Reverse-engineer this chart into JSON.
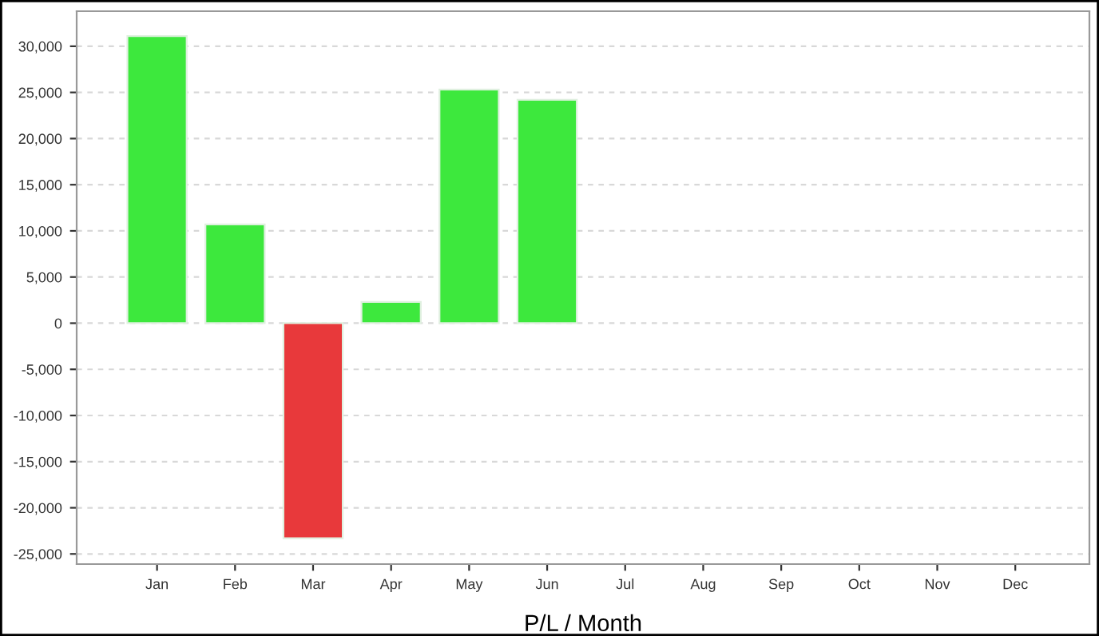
{
  "chart_data": {
    "type": "bar",
    "xlabel": "P/L / Month",
    "categories": [
      "Jan",
      "Feb",
      "Mar",
      "Apr",
      "May",
      "Jun",
      "Jul",
      "Aug",
      "Sep",
      "Oct",
      "Nov",
      "Dec"
    ],
    "values": [
      31100,
      10700,
      -23300,
      2300,
      25300,
      24200,
      null,
      null,
      null,
      null,
      null,
      null
    ],
    "colors": [
      "#3de83d",
      "#3de83d",
      "#e8393b",
      "#3de83d",
      "#3de83d",
      "#3de83d",
      "#3de83d",
      "#3de83d",
      "#3de83d",
      "#3de83d",
      "#3de83d",
      "#3de83d"
    ],
    "ylim": [
      -26100,
      33800
    ],
    "yticks": [
      {
        "value": -25000,
        "label": "-25,000"
      },
      {
        "value": -20000,
        "label": "-20,000"
      },
      {
        "value": -15000,
        "label": "-15,000"
      },
      {
        "value": -10000,
        "label": "-10,000"
      },
      {
        "value": -5000,
        "label": "-5,000"
      },
      0,
      {
        "value": 5000,
        "label": "5,000"
      },
      {
        "value": 10000,
        "label": "10,000"
      },
      {
        "value": 15000,
        "label": "15,000"
      },
      {
        "value": 20000,
        "label": "20,000"
      },
      {
        "value": 25000,
        "label": "25,000"
      },
      {
        "value": 30000,
        "label": "30,000"
      }
    ],
    "grid": "y"
  }
}
